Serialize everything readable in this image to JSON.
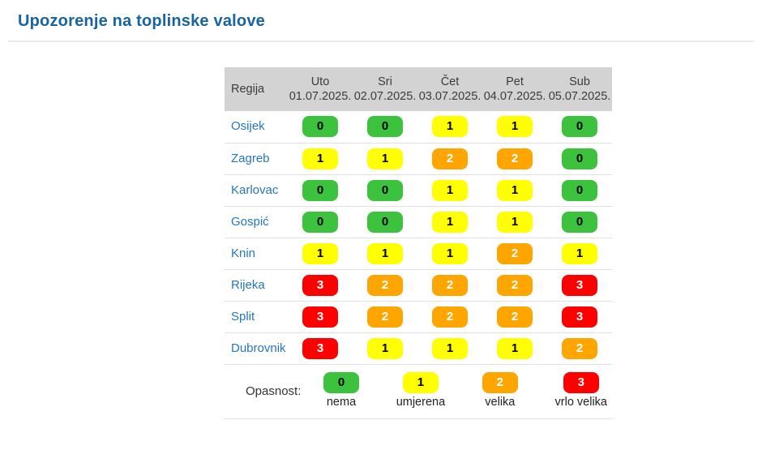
{
  "page": {
    "title": "Upozorenje na toplinske valove"
  },
  "colors": {
    "title": "#17649f",
    "region_link": "#2577bd",
    "header_bg": "#d3d3d3",
    "level_colors": {
      "0": {
        "bg": "#3cc23c",
        "fg": "#000000"
      },
      "1": {
        "bg": "#ffff00",
        "fg": "#000000"
      },
      "2": {
        "bg": "#ffa500",
        "fg": "#ffffff"
      },
      "3": {
        "bg": "#ff0000",
        "fg": "#ffffff"
      }
    }
  },
  "table": {
    "region_header": "Regija",
    "day_headers": [
      {
        "day": "Uto",
        "date": "01.07.2025."
      },
      {
        "day": "Sri",
        "date": "02.07.2025."
      },
      {
        "day": "Čet",
        "date": "03.07.2025."
      },
      {
        "day": "Pet",
        "date": "04.07.2025."
      },
      {
        "day": "Sub",
        "date": "05.07.2025."
      }
    ],
    "rows": [
      {
        "region": "Osijek",
        "levels": [
          0,
          0,
          1,
          1,
          0
        ]
      },
      {
        "region": "Zagreb",
        "levels": [
          1,
          1,
          2,
          2,
          0
        ]
      },
      {
        "region": "Karlovac",
        "levels": [
          0,
          0,
          1,
          1,
          0
        ]
      },
      {
        "region": "Gospić",
        "levels": [
          0,
          0,
          1,
          1,
          0
        ]
      },
      {
        "region": "Knin",
        "levels": [
          1,
          1,
          1,
          2,
          1
        ]
      },
      {
        "region": "Rijeka",
        "levels": [
          3,
          2,
          2,
          2,
          3
        ]
      },
      {
        "region": "Split",
        "levels": [
          3,
          2,
          2,
          2,
          3
        ]
      },
      {
        "region": "Dubrovnik",
        "levels": [
          3,
          1,
          1,
          1,
          2
        ]
      }
    ]
  },
  "legend": {
    "label": "Opasnost:",
    "items": [
      {
        "level": 0,
        "label": "nema"
      },
      {
        "level": 1,
        "label": "umjerena"
      },
      {
        "level": 2,
        "label": "velika"
      },
      {
        "level": 3,
        "label": "vrlo velika"
      }
    ]
  }
}
